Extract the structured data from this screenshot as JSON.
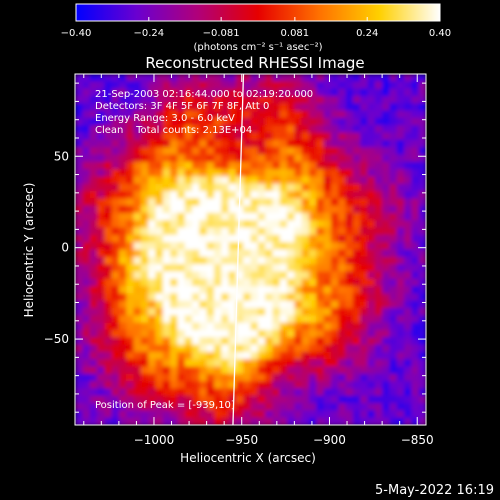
{
  "chart_data": {
    "type": "heatmap",
    "title": "Reconstructed RHESSI Image",
    "xlabel": "Heliocentric X (arcsec)",
    "ylabel": "Heliocentric Y (arcsec)",
    "xlim": [
      -1045,
      -845
    ],
    "ylim": [
      -97,
      95
    ],
    "xticks": [
      -1000,
      -950,
      -900,
      -850
    ],
    "yticks": [
      50,
      0,
      -50
    ],
    "xtick_labels": [
      "−1000",
      "−950",
      "−900",
      "−850"
    ],
    "ytick_labels": [
      "50",
      "0",
      "−50"
    ],
    "colorbar": {
      "min": -0.4,
      "max": 0.4,
      "ticks": [
        -0.4,
        -0.24,
        -0.081,
        0.081,
        0.24,
        0.4
      ],
      "tick_labels": [
        "−0.40",
        "−0.24",
        "−0.081",
        "0.081",
        "0.24",
        "0.40"
      ],
      "unit_label": "(photons cm⁻² s⁻¹ asec⁻²)",
      "colormap": [
        "#0000ff",
        "#6a00d0",
        "#b0007a",
        "#e60000",
        "#ff7000",
        "#ffd000",
        "#ffffff"
      ]
    },
    "annotations": {
      "time_range": "21-Sep-2003 02:16:44.000 to 02:19:20.000",
      "detectors": "Detectors: 3F 4F 5F 6F 7F 8F, Att 0",
      "energy_range": "Energy Range: 3.0 - 6.0 keV",
      "clean_counts": "Clean    Total counts: 2.13E+04",
      "peak": "Position of Peak = [-939,10]"
    },
    "peak_position": [
      -939,
      10
    ],
    "limb_line": [
      [
        -949,
        95
      ],
      [
        -955,
        -97
      ]
    ],
    "emission_blobs": [
      {
        "x": -945,
        "y": 10,
        "level": 1.0
      },
      {
        "x": -965,
        "y": 20,
        "level": 0.92
      },
      {
        "x": -985,
        "y": 5,
        "level": 0.78
      },
      {
        "x": -960,
        "y": -15,
        "level": 0.95
      },
      {
        "x": -975,
        "y": -35,
        "level": 0.85
      },
      {
        "x": -940,
        "y": -30,
        "level": 0.75
      },
      {
        "x": -950,
        "y": -55,
        "level": 0.6
      },
      {
        "x": -920,
        "y": 5,
        "level": 0.62
      },
      {
        "x": -915,
        "y": 40,
        "level": 0.5
      },
      {
        "x": -1000,
        "y": 40,
        "level": 0.55
      },
      {
        "x": -1010,
        "y": -10,
        "level": 0.58
      },
      {
        "x": -1015,
        "y": -45,
        "level": 0.45
      },
      {
        "x": -930,
        "y": 70,
        "level": 0.45
      },
      {
        "x": -975,
        "y": 70,
        "level": 0.5
      },
      {
        "x": -995,
        "y": -70,
        "level": 0.4
      },
      {
        "x": -905,
        "y": -45,
        "level": 0.5
      },
      {
        "x": -880,
        "y": 20,
        "level": 0.35
      },
      {
        "x": -890,
        "y": -20,
        "level": 0.4
      },
      {
        "x": -960,
        "y": -85,
        "level": 0.35
      },
      {
        "x": -1030,
        "y": 20,
        "level": 0.3
      }
    ]
  },
  "footer": {
    "date": "5-May-2022 16:19"
  }
}
